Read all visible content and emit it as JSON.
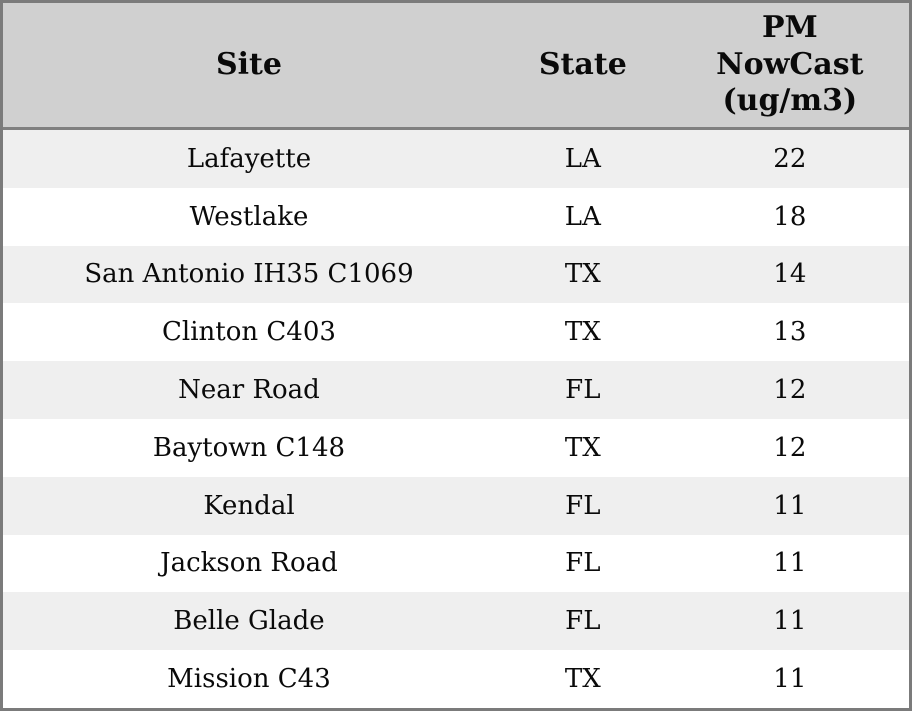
{
  "chart_data": {
    "type": "table",
    "title": "",
    "columns": [
      "Site",
      "State",
      "PM NowCast (ug/m3)"
    ],
    "rows": [
      [
        "Lafayette",
        "LA",
        "22"
      ],
      [
        "Westlake",
        "LA",
        "18"
      ],
      [
        "San Antonio IH35 C1069",
        "TX",
        "14"
      ],
      [
        "Clinton C403",
        "TX",
        "13"
      ],
      [
        "Near Road",
        "FL",
        "12"
      ],
      [
        "Baytown C148",
        "TX",
        "12"
      ],
      [
        "Kendal",
        "FL",
        "11"
      ],
      [
        "Jackson Road",
        "FL",
        "11"
      ],
      [
        "Belle Glade",
        "FL",
        "11"
      ],
      [
        "Mission C43",
        "TX",
        "11"
      ]
    ],
    "layout": {
      "header_position": "top",
      "alignment": "center",
      "striped": true
    }
  },
  "colors": {
    "header_bg": "#d0d0d0",
    "row_alt_bg": "#efefef",
    "row_bg": "#ffffff",
    "outer_border": "#7b7b7b",
    "header_divider": "#808080",
    "text": "#0a0a0a"
  }
}
